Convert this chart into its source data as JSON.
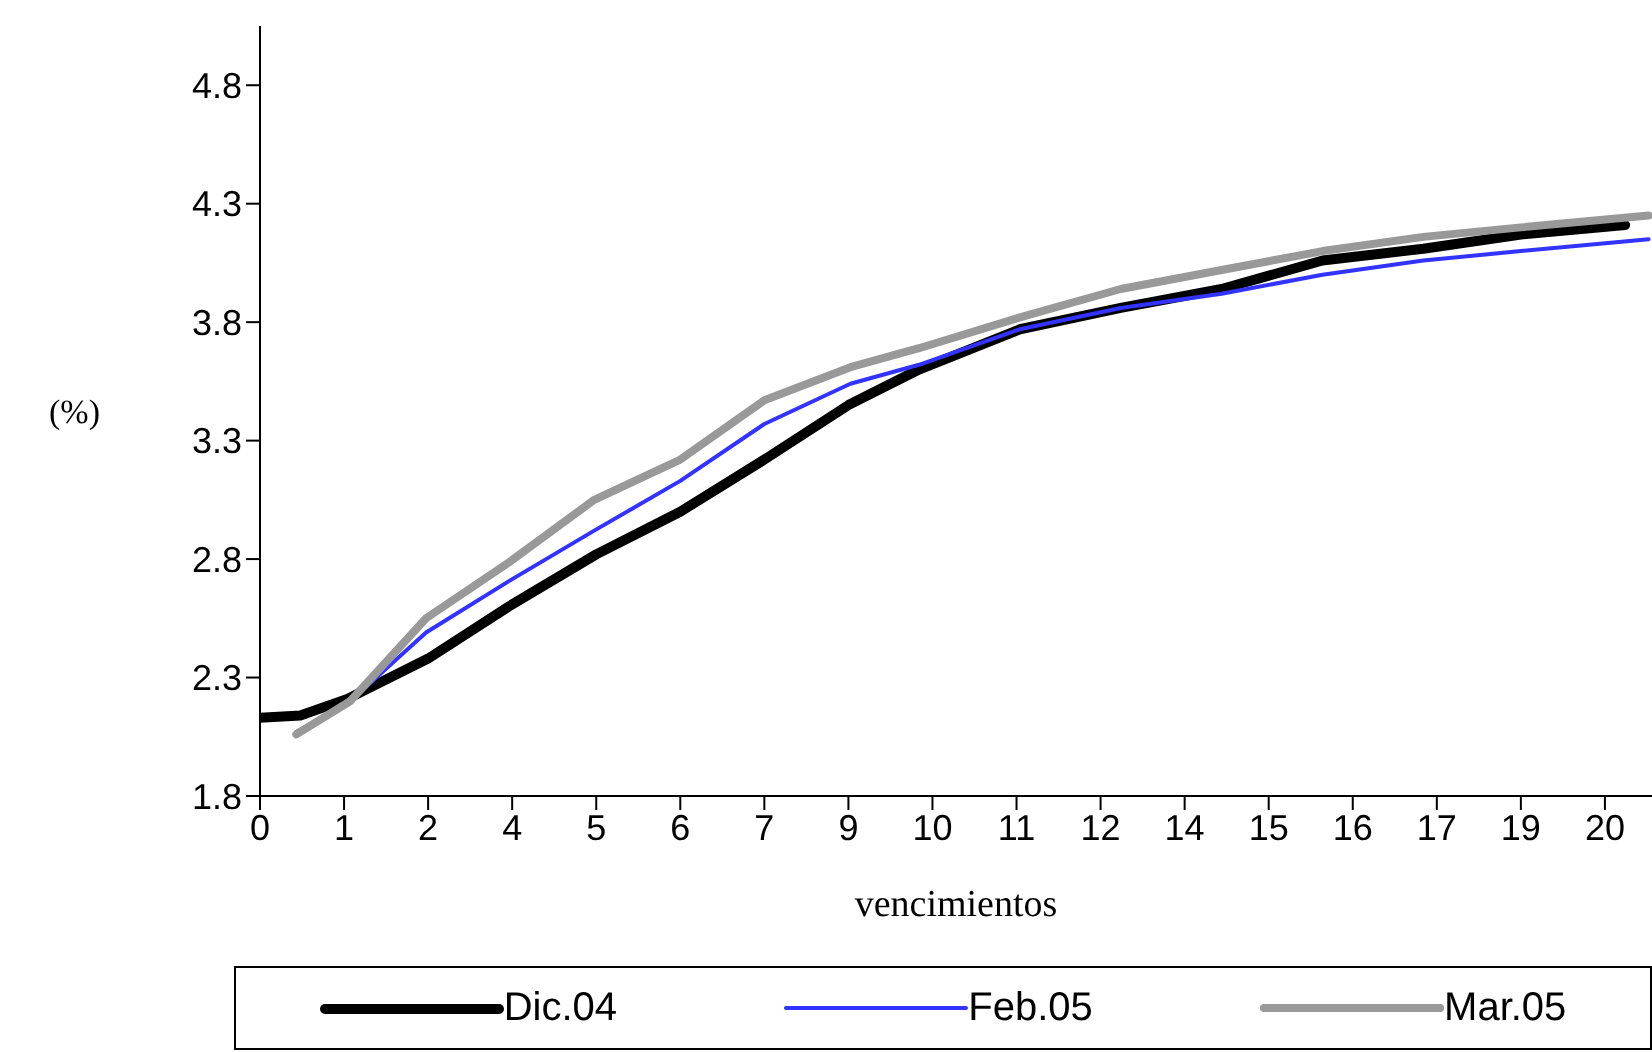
{
  "chart_data": {
    "type": "line",
    "xlabel": "vencimientos",
    "ylabel": "(%)",
    "xlim": [
      0,
      20.7
    ],
    "xticks": [
      {
        "value": 0,
        "label": "0"
      },
      {
        "value": 1.25,
        "label": "1"
      },
      {
        "value": 2.5,
        "label": "2"
      },
      {
        "value": 3.75,
        "label": "4"
      },
      {
        "value": 5,
        "label": "5"
      },
      {
        "value": 6.25,
        "label": "6"
      },
      {
        "value": 7.5,
        "label": "7"
      },
      {
        "value": 8.75,
        "label": "9"
      },
      {
        "value": 10,
        "label": "10"
      },
      {
        "value": 11.25,
        "label": "11"
      },
      {
        "value": 12.5,
        "label": "12"
      },
      {
        "value": 13.75,
        "label": "14"
      },
      {
        "value": 15,
        "label": "15"
      },
      {
        "value": 16.25,
        "label": "16"
      },
      {
        "value": 17.5,
        "label": "17"
      },
      {
        "value": 18.75,
        "label": "19"
      },
      {
        "value": 20,
        "label": "20"
      }
    ],
    "ylim": [
      1.8,
      5.05
    ],
    "yticks": [
      1.8,
      2.3,
      2.8,
      3.3,
      3.8,
      4.3,
      4.8
    ],
    "grid": false,
    "legend": "bottom",
    "marker": "none",
    "line_style": "solid",
    "series": [
      {
        "name": "Dic.04",
        "color": "#000000",
        "x": [
          0,
          0.6,
          1.3,
          2.5,
          3.7,
          5,
          6.25,
          7.5,
          8.75,
          9.8,
          11.3,
          12.8,
          14.3,
          15.8,
          17.3,
          18.75,
          20.3
        ],
        "values": [
          2.13,
          2.14,
          2.21,
          2.38,
          2.6,
          2.82,
          3.0,
          3.22,
          3.45,
          3.6,
          3.77,
          3.86,
          3.94,
          4.06,
          4.11,
          4.17,
          4.21
        ]
      },
      {
        "name": "Feb.05",
        "color": "#3333ff",
        "x": [
          0.54,
          1.34,
          2.47,
          3.72,
          4.97,
          6.25,
          7.5,
          8.78,
          9.8,
          11.3,
          12.8,
          14.3,
          15.8,
          17.3,
          18.75,
          20.65
        ],
        "values": [
          2.07,
          2.2,
          2.49,
          2.71,
          2.92,
          3.13,
          3.37,
          3.54,
          3.62,
          3.77,
          3.86,
          3.92,
          4.0,
          4.06,
          4.1,
          4.15
        ]
      },
      {
        "name": "Mar.05",
        "color": "#999999",
        "x": [
          0.54,
          1.34,
          2.47,
          3.72,
          4.97,
          6.25,
          7.5,
          8.78,
          9.8,
          11.3,
          12.8,
          14.3,
          15.8,
          17.3,
          18.75,
          20.65
        ],
        "values": [
          2.06,
          2.2,
          2.55,
          2.79,
          3.05,
          3.22,
          3.47,
          3.61,
          3.69,
          3.82,
          3.94,
          4.02,
          4.1,
          4.16,
          4.2,
          4.25
        ]
      }
    ]
  }
}
